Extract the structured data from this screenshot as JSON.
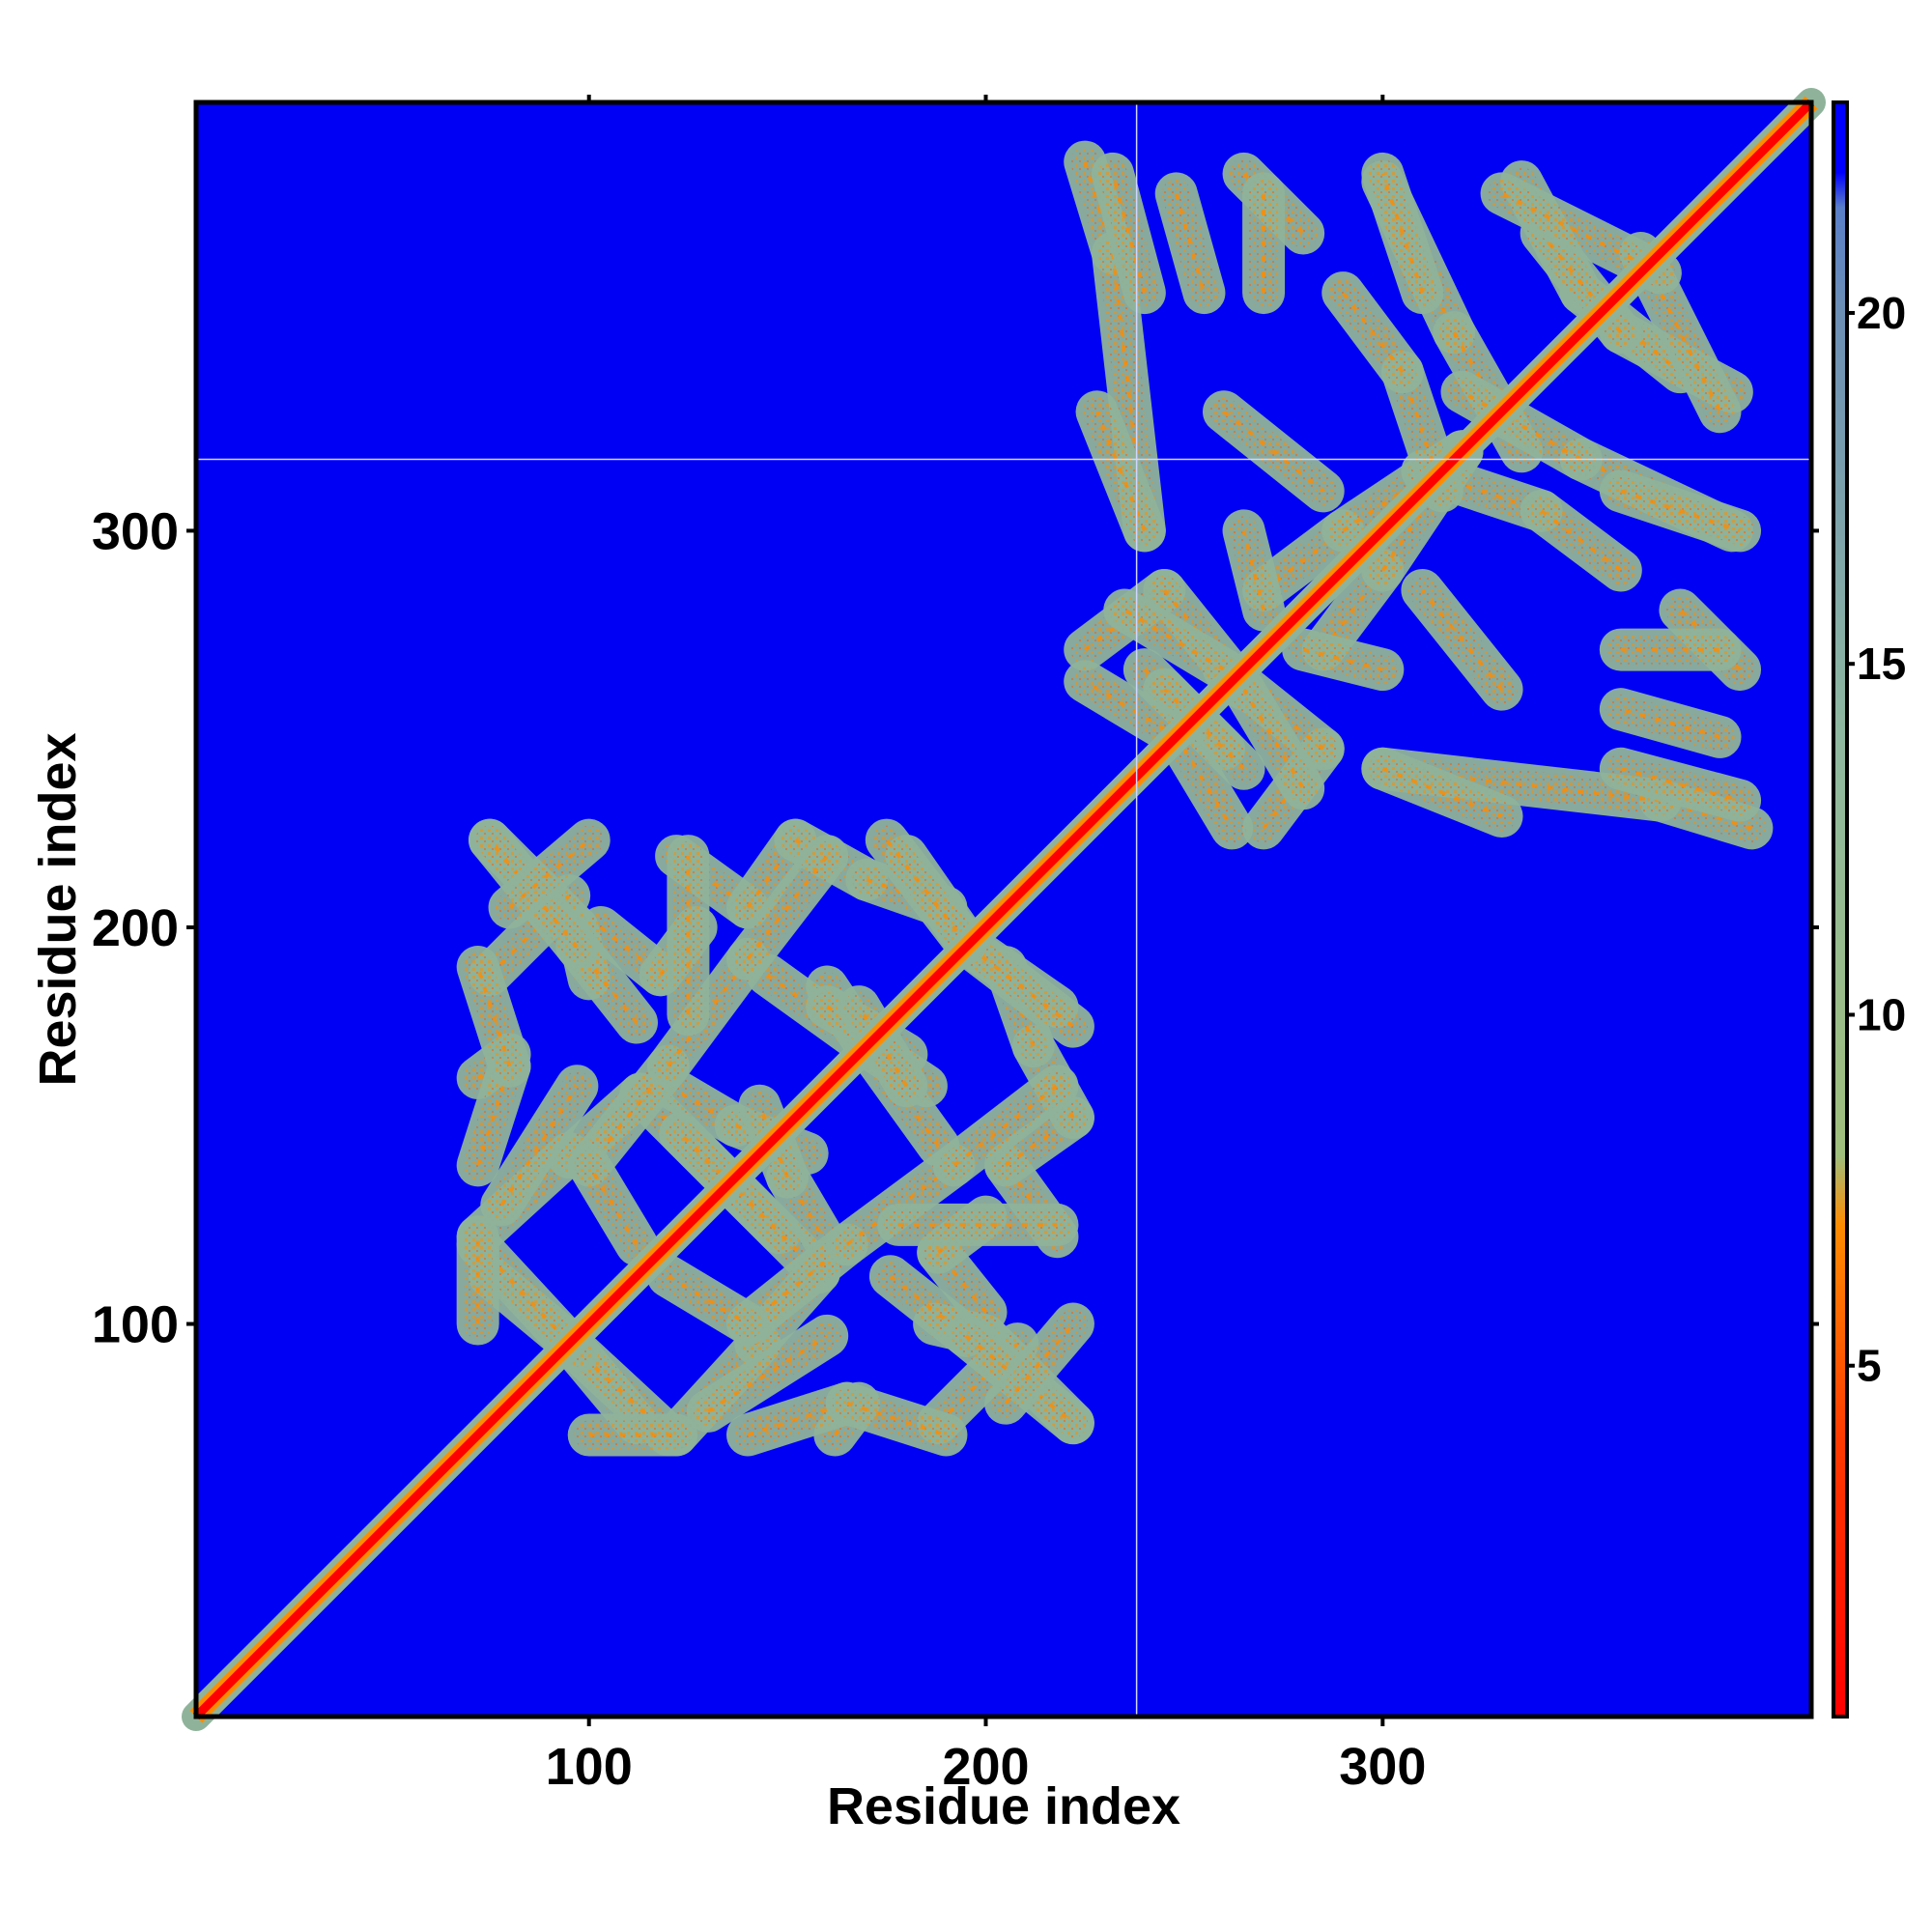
{
  "chart_data": {
    "type": "heatmap",
    "title": "",
    "xlabel": "Residue index",
    "ylabel": "Residue index",
    "xlim": [
      1,
      408
    ],
    "ylim": [
      1,
      408
    ],
    "x_ticks": [
      100,
      200,
      300
    ],
    "y_ticks": [
      100,
      200,
      300
    ],
    "colorbar": {
      "ticks": [
        5,
        10,
        15,
        20
      ],
      "range": [
        0,
        23
      ],
      "stops": [
        {
          "value": 0,
          "color": "#ff0000"
        },
        {
          "value": 4,
          "color": "#ff3b00"
        },
        {
          "value": 7,
          "color": "#ff8c00"
        },
        {
          "value": 8,
          "color": "#9fbf7c"
        },
        {
          "value": 14,
          "color": "#8fb8a0"
        },
        {
          "value": 20,
          "color": "#6c8fb5"
        },
        {
          "value": 21.5,
          "color": "#5a7fc8"
        },
        {
          "value": 22,
          "color": "#0000ff"
        },
        {
          "value": 23,
          "color": "#0000ff"
        }
      ]
    },
    "background_color": "#0000f5",
    "domain_boundary": {
      "residue": 238
    },
    "grid": false,
    "features": {
      "diagonal": {
        "from": 1,
        "to": 408
      },
      "domain1_contacts": [
        {
          "from": [
            75,
            222
          ],
          "to": [
            97,
            200
          ]
        },
        {
          "from": [
            97,
            200
          ],
          "to": [
            100,
            187
          ]
        },
        {
          "from": [
            75,
            188
          ],
          "to": [
            95,
            208
          ]
        },
        {
          "from": [
            72,
            162
          ],
          "to": [
            80,
            168
          ]
        },
        {
          "from": [
            95,
            143
          ],
          "to": [
            72,
            122
          ]
        },
        {
          "from": [
            95,
            142
          ],
          "to": [
            113,
            158
          ]
        },
        {
          "from": [
            113,
            158
          ],
          "to": [
            148,
            123
          ]
        },
        {
          "from": [
            75,
            112
          ],
          "to": [
            93,
            97
          ]
        },
        {
          "from": [
            93,
            97
          ],
          "to": [
            120,
            72
          ]
        },
        {
          "from": [
            103,
            200
          ],
          "to": [
            118,
            188
          ]
        },
        {
          "from": [
            118,
            188
          ],
          "to": [
            127,
            200
          ]
        },
        {
          "from": [
            122,
            218
          ],
          "to": [
            140,
            205
          ]
        },
        {
          "from": [
            140,
            205
          ],
          "to": [
            152,
            222
          ]
        },
        {
          "from": [
            152,
            222
          ],
          "to": [
            170,
            212
          ]
        },
        {
          "from": [
            170,
            212
          ],
          "to": [
            190,
            205
          ]
        },
        {
          "from": [
            180,
            218
          ],
          "to": [
            196,
            195
          ]
        },
        {
          "from": [
            196,
            195
          ],
          "to": [
            222,
            175
          ]
        },
        {
          "from": [
            145,
            188
          ],
          "to": [
            170,
            170
          ]
        },
        {
          "from": [
            170,
            170
          ],
          "to": [
            185,
            160
          ]
        },
        {
          "from": [
            160,
            180
          ],
          "to": [
            180,
            168
          ]
        },
        {
          "from": [
            120,
            160
          ],
          "to": [
            137,
            150
          ]
        },
        {
          "from": [
            137,
            150
          ],
          "to": [
            155,
            143
          ]
        },
        {
          "from": [
            140,
            100
          ],
          "to": [
            165,
            120
          ]
        },
        {
          "from": [
            165,
            120
          ],
          "to": [
            192,
            140
          ]
        },
        {
          "from": [
            192,
            140
          ],
          "to": [
            218,
            160
          ]
        },
        {
          "from": [
            120,
            112
          ],
          "to": [
            140,
            100
          ]
        },
        {
          "from": [
            176,
            112
          ],
          "to": [
            195,
            97
          ]
        },
        {
          "from": [
            195,
            97
          ],
          "to": [
            222,
            75
          ]
        },
        {
          "from": [
            178,
            125
          ],
          "to": [
            218,
            125
          ]
        },
        {
          "from": [
            140,
            72
          ],
          "to": [
            165,
            80
          ]
        },
        {
          "from": [
            165,
            80
          ],
          "to": [
            190,
            72
          ]
        },
        {
          "from": [
            100,
            72
          ],
          "to": [
            122,
            72
          ]
        },
        {
          "from": [
            130,
            78
          ],
          "to": [
            160,
            97
          ]
        },
        {
          "from": [
            205,
            80
          ],
          "to": [
            222,
            100
          ]
        }
      ],
      "domain2_contacts": [
        {
          "from": [
            225,
            393
          ],
          "to": [
            232,
            370
          ]
        },
        {
          "from": [
            232,
            370
          ],
          "to": [
            240,
            300
          ]
        },
        {
          "from": [
            248,
            385
          ],
          "to": [
            255,
            360
          ]
        },
        {
          "from": [
            265,
            390
          ],
          "to": [
            280,
            375
          ]
        },
        {
          "from": [
            260,
            330
          ],
          "to": [
            285,
            310
          ]
        },
        {
          "from": [
            300,
            388
          ],
          "to": [
            318,
            350
          ]
        },
        {
          "from": [
            318,
            350
          ],
          "to": [
            335,
            320
          ]
        },
        {
          "from": [
            335,
            388
          ],
          "to": [
            350,
            360
          ]
        },
        {
          "from": [
            350,
            360
          ],
          "to": [
            375,
            340
          ]
        },
        {
          "from": [
            365,
            370
          ],
          "to": [
            385,
            330
          ]
        },
        {
          "from": [
            360,
            310
          ],
          "to": [
            390,
            300
          ]
        },
        {
          "from": [
            225,
            270
          ],
          "to": [
            245,
            285
          ]
        },
        {
          "from": [
            245,
            285
          ],
          "to": [
            265,
            260
          ]
        },
        {
          "from": [
            265,
            260
          ],
          "to": [
            280,
            235
          ]
        },
        {
          "from": [
            240,
            265
          ],
          "to": [
            260,
            245
          ]
        },
        {
          "from": [
            250,
            245
          ],
          "to": [
            262,
            225
          ]
        },
        {
          "from": [
            270,
            285
          ],
          "to": [
            290,
            300
          ]
        },
        {
          "from": [
            290,
            300
          ],
          "to": [
            320,
            320
          ]
        },
        {
          "from": [
            300,
            240
          ],
          "to": [
            330,
            228
          ]
        },
        {
          "from": [
            310,
            315
          ],
          "to": [
            340,
            305
          ]
        },
        {
          "from": [
            340,
            305
          ],
          "to": [
            360,
            290
          ]
        },
        {
          "from": [
            360,
            240
          ],
          "to": [
            390,
            232
          ]
        },
        {
          "from": [
            280,
            270
          ],
          "to": [
            300,
            265
          ]
        },
        {
          "from": [
            360,
            270
          ],
          "to": [
            385,
            270
          ]
        }
      ]
    }
  }
}
